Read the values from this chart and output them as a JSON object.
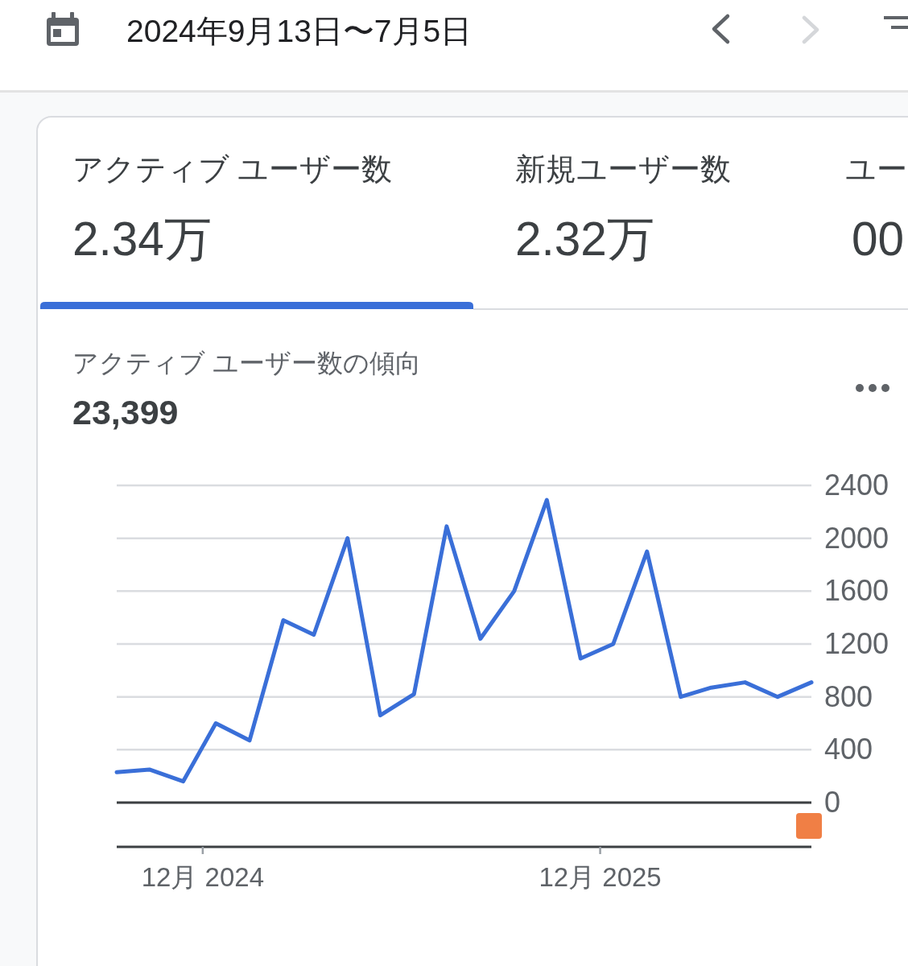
{
  "chart_data": [
    {
      "type": "other",
      "annotations": [
        "2024年9月13日〜7月5日",
        "アクティブ ユーザー数",
        "2.34万",
        "新規ユーザー数",
        "2.32万",
        "ユー",
        "00"
      ]
    },
    {
      "type": "line",
      "title": "アクティブ ユーザー数の傾向",
      "subtitle": "23,399",
      "x": [
        "2024-09-13",
        "2024-10-13",
        "2024-11-13",
        "2024-12-13",
        "2025-01-13",
        "2025-02-13",
        "2025-03-13",
        "2025-04-13",
        "2025-05-13",
        "2025-06-13",
        "2025-07-13",
        "2025-08-13",
        "2025-09-13",
        "2025-10-13",
        "2025-11-13",
        "2025-12-13",
        "2026-01-13",
        "2026-02-13",
        "2026-03-13",
        "2026-04-13",
        "2026-05-13",
        "2026-06-13"
      ],
      "series": [
        {
          "color": "#3a6fd8",
          "values": [
            230,
            250,
            160,
            600,
            470,
            1380,
            1270,
            2000,
            660,
            820,
            2090,
            1240,
            1600,
            2290,
            1090,
            1200,
            1900,
            800,
            870,
            910,
            800,
            910
          ]
        }
      ],
      "xlim": [
        "2024-09-13",
        "2026-06-13"
      ],
      "xticks": [
        {
          "value": "2024-12-01",
          "label": "12月 2024"
        },
        {
          "value": "2025-12-01",
          "label": "12月 2025"
        }
      ],
      "ylim": [
        0,
        2400
      ],
      "yticks": [
        0,
        400,
        800,
        1200,
        1600,
        2000,
        2400
      ],
      "grid": "y"
    }
  ]
}
